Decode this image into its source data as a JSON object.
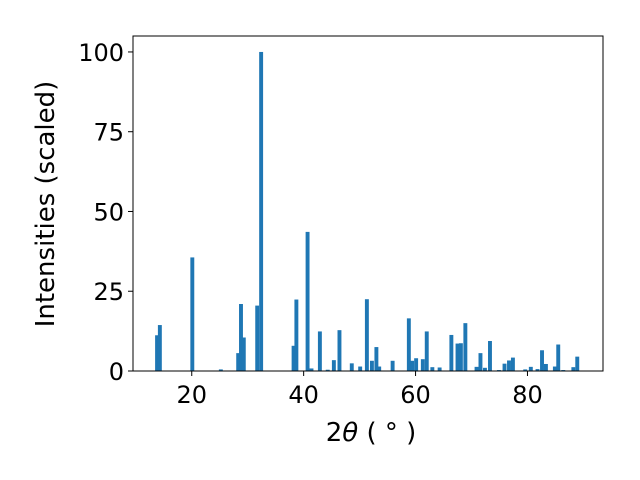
{
  "chart_data": {
    "type": "bar",
    "xlabel": "2θ (°)",
    "xlabel_parts": {
      "prefix": "2",
      "theta": "θ",
      "suffix": " ( ° )"
    },
    "ylabel": "Intensities (scaled)",
    "xlim": [
      9.5,
      93.5
    ],
    "ylim": [
      0,
      105
    ],
    "xticks": [
      20,
      40,
      60,
      80
    ],
    "yticks": [
      0,
      25,
      50,
      75,
      100
    ],
    "grid": false,
    "color": "#1f77b4",
    "bar_width": 0.7,
    "x": [
      13.8,
      14.3,
      20.1,
      25.2,
      28.3,
      28.8,
      29.3,
      31.7,
      32.4,
      38.2,
      38.7,
      40.7,
      41.4,
      42.9,
      44.3,
      45.4,
      46.4,
      48.6,
      50.1,
      51.3,
      52.2,
      53.0,
      53.5,
      55.9,
      58.8,
      59.4,
      60.1,
      61.3,
      62.0,
      63.0,
      64.3,
      66.4,
      67.5,
      68.1,
      68.9,
      70.9,
      71.6,
      72.4,
      73.3,
      74.9,
      75.9,
      76.7,
      77.4,
      79.6,
      80.6,
      81.8,
      82.6,
      83.3,
      84.9,
      85.5,
      86.4,
      88.2,
      88.9
    ],
    "values": [
      11.2,
      14.4,
      35.6,
      0.5,
      5.6,
      21.0,
      10.5,
      20.5,
      100.0,
      7.9,
      22.4,
      43.6,
      0.8,
      12.4,
      0.4,
      3.4,
      12.8,
      2.4,
      1.4,
      22.5,
      3.2,
      7.5,
      1.4,
      3.2,
      16.5,
      3.2,
      4.0,
      3.7,
      12.4,
      1.2,
      1.1,
      11.3,
      8.6,
      8.7,
      15.0,
      1.3,
      5.6,
      1.0,
      9.4,
      0.3,
      2.3,
      3.3,
      4.2,
      0.5,
      1.3,
      0.6,
      6.5,
      2.2,
      1.4,
      8.3,
      0.3,
      1.2,
      4.5
    ]
  }
}
